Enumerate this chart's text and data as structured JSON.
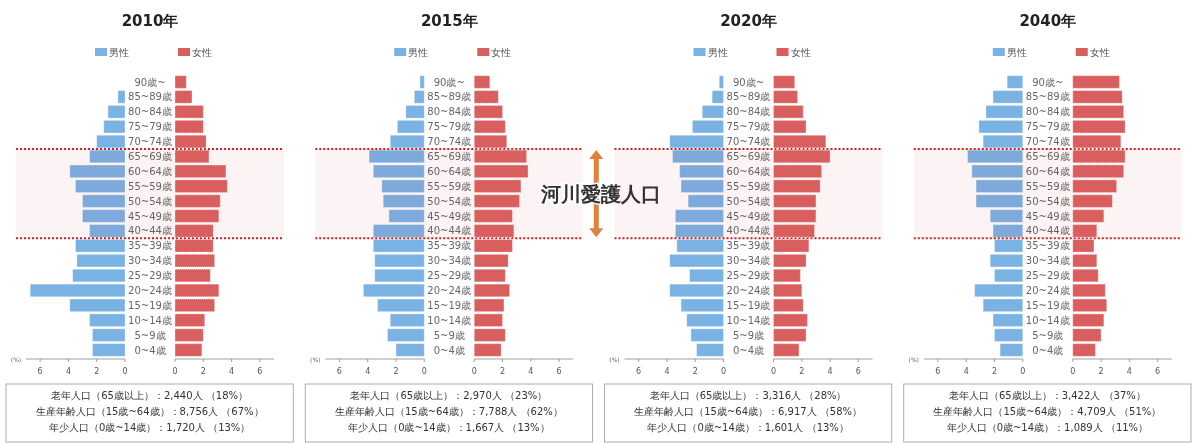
{
  "chart_data": [
    {
      "type": "bar",
      "orientation": "horizontal",
      "title": "2010年",
      "xlabel": "(%)",
      "legend": "top",
      "categories": [
        "90歳~",
        "85~89歳",
        "80~84歳",
        "75~79歳",
        "70~74歳",
        "65~69歳",
        "60~64歳",
        "55~59歳",
        "50~54歳",
        "45~49歳",
        "40~44歳",
        "35~39歳",
        "30~34歳",
        "25~29歳",
        "20~24歳",
        "15~19歳",
        "10~14歳",
        "5~9歳",
        "0~4歳"
      ],
      "series": [
        {
          "name": "男性",
          "color": "#7ab2e4",
          "values": [
            0,
            0.5,
            1.2,
            1.5,
            2.0,
            2.5,
            3.9,
            3.5,
            3.0,
            3.0,
            2.5,
            3.5,
            3.4,
            3.7,
            6.7,
            3.9,
            2.5,
            2.3,
            2.3
          ]
        }
      ],
      "xlim": [
        7,
        0
      ],
      "xticks": [
        6,
        4,
        2,
        0
      ],
      "bands": [
        {
          "axis": "y",
          "from": "65~69歳",
          "to": "40~44歳",
          "color": "#cc2222"
        }
      ],
      "annotations": [
        "老年人口（65歳以上）：2,440人 （18%）",
        "生産年齢人口（15歳~64歳）：8,756人 （67%）",
        "年少人口（0歳~14歳）：1,720人 （13%）"
      ]
    },
    {
      "type": "bar",
      "orientation": "horizontal",
      "legend": "top",
      "tick_labels": "x",
      "categories": [
        null,
        null,
        null,
        null,
        null,
        null,
        null,
        null,
        null,
        null,
        null,
        null,
        null,
        null,
        null,
        null,
        null,
        null,
        null
      ],
      "series": [
        {
          "name": "女性",
          "color": "#d95f5f",
          "values": [
            0.8,
            1.2,
            2.0,
            2.0,
            2.2,
            2.4,
            3.6,
            3.7,
            3.2,
            3.1,
            2.7,
            2.7,
            2.8,
            2.5,
            3.1,
            2.8,
            2.1,
            2.0,
            1.9
          ]
        }
      ],
      "xlim": [
        0,
        7
      ],
      "xticks": [
        0,
        2,
        4,
        6
      ]
    },
    {
      "type": "bar",
      "orientation": "horizontal",
      "title": "2015年",
      "xlabel": "(%)",
      "legend": "top",
      "categories": [
        "90歳~",
        "85~89歳",
        "80~84歳",
        "75~79歳",
        "70~74歳",
        "65~69歳",
        "60~64歳",
        "55~59歳",
        "50~54歳",
        "45~49歳",
        "40~44歳",
        "35~39歳",
        "30~34歳",
        "25~29歳",
        "20~24歳",
        "15~19歳",
        "10~14歳",
        "5~9歳",
        "0~4歳"
      ],
      "series": [
        {
          "name": "男性",
          "color": "#7ab2e4",
          "values": [
            0.3,
            0.7,
            1.3,
            1.9,
            2.4,
            3.9,
            3.6,
            3.0,
            2.9,
            2.5,
            3.6,
            3.6,
            3.5,
            3.5,
            4.3,
            3.3,
            2.4,
            2.6,
            2.0
          ]
        }
      ],
      "xlim": [
        7,
        0
      ],
      "xticks": [
        6,
        4,
        2,
        0
      ],
      "bands": [
        {
          "axis": "y",
          "from": "65~69歳",
          "to": "40~44歳",
          "color": "#cc2222",
          "label": "河川愛護人口"
        }
      ],
      "annotations": [
        "老年人口（65歳以上）：2,970人 （23%）",
        "生産年齢人口（15歳~64歳）：7,788人 （62%）",
        "年少人口（0歳~14歳）：1,667人 （13%）"
      ]
    },
    {
      "type": "bar",
      "orientation": "horizontal",
      "legend": "top",
      "tick_labels": "x",
      "categories": [
        null,
        null,
        null,
        null,
        null,
        null,
        null,
        null,
        null,
        null,
        null,
        null,
        null,
        null,
        null,
        null,
        null,
        null,
        null
      ],
      "series": [
        {
          "name": "女性",
          "color": "#d95f5f",
          "values": [
            1.1,
            1.7,
            2.0,
            2.2,
            2.3,
            3.7,
            3.8,
            3.3,
            3.2,
            2.7,
            2.8,
            2.7,
            2.4,
            2.2,
            2.5,
            2.1,
            2.0,
            2.2,
            1.9
          ]
        }
      ],
      "xlim": [
        0,
        7
      ],
      "xticks": [
        0,
        2,
        4,
        6
      ]
    },
    {
      "type": "bar",
      "orientation": "horizontal",
      "title": "2020年",
      "xlabel": "(%)",
      "legend": "top",
      "categories": [
        "90歳~",
        "85~89歳",
        "80~84歳",
        "75~79歳",
        "70~74歳",
        "65~69歳",
        "60~64歳",
        "55~59歳",
        "50~54歳",
        "45~49歳",
        "40~44歳",
        "35~39歳",
        "30~34歳",
        "25~29歳",
        "20~24歳",
        "15~19歳",
        "10~14歳",
        "5~9歳",
        "0~4歳"
      ],
      "series": [
        {
          "name": "男性",
          "color": "#7ab2e4",
          "values": [
            0.3,
            0.8,
            1.5,
            2.2,
            3.8,
            3.6,
            3.1,
            3.0,
            2.5,
            3.4,
            3.4,
            3.3,
            3.8,
            2.4,
            3.8,
            3.0,
            2.6,
            2.3,
            1.9
          ]
        }
      ],
      "xlim": [
        7,
        0
      ],
      "xticks": [
        6,
        4,
        2,
        0
      ],
      "bands": [
        {
          "axis": "y",
          "from": "65~69歳",
          "to": "40~44歳",
          "color": "#cc2222"
        }
      ],
      "annotations": [
        "老年人口（65歳以上）：3,316人 （28%）",
        "生産年齢人口（15歳~64歳）：6,917人 （58%）",
        "年少人口（0歳~14歳）：1,601人 （13%）"
      ]
    },
    {
      "type": "bar",
      "orientation": "horizontal",
      "legend": "top",
      "tick_labels": "x",
      "categories": [
        null,
        null,
        null,
        null,
        null,
        null,
        null,
        null,
        null,
        null,
        null,
        null,
        null,
        null,
        null,
        null,
        null,
        null,
        null
      ],
      "series": [
        {
          "name": "女性",
          "color": "#d95f5f",
          "values": [
            1.5,
            1.7,
            2.1,
            2.3,
            3.7,
            4.0,
            3.4,
            3.3,
            3.0,
            3.0,
            2.9,
            2.5,
            2.3,
            1.9,
            2.0,
            2.1,
            2.4,
            2.3,
            1.8
          ]
        }
      ],
      "xlim": [
        0,
        7
      ],
      "xticks": [
        0,
        2,
        4,
        6
      ]
    },
    {
      "type": "bar",
      "orientation": "horizontal",
      "title": "2040年",
      "xlabel": "(%)",
      "legend": "top",
      "categories": [
        "90歳~",
        "85~89歳",
        "80~84歳",
        "75~79歳",
        "70~74歳",
        "65~69歳",
        "60~64歳",
        "55~59歳",
        "50~54歳",
        "45~49歳",
        "40~44歳",
        "35~39歳",
        "30~34歳",
        "25~29歳",
        "20~24歳",
        "15~19歳",
        "10~14歳",
        "5~9歳",
        "0~4歳"
      ],
      "series": [
        {
          "name": "男性",
          "color": "#7ab2e4",
          "values": [
            1.1,
            2.1,
            2.6,
            3.1,
            2.8,
            3.9,
            3.6,
            3.3,
            3.3,
            2.3,
            2.1,
            2.0,
            2.3,
            2.0,
            3.4,
            2.8,
            2.1,
            2.0,
            1.6
          ]
        }
      ],
      "xlim": [
        7,
        0
      ],
      "xticks": [
        6,
        4,
        2,
        0
      ],
      "bands": [
        {
          "axis": "y",
          "from": "65~69歳",
          "to": "40~44歳",
          "color": "#cc2222"
        }
      ],
      "annotations": [
        "老年人口（65歳以上）：3,422人 （37%）",
        "生産年齢人口（15歳~64歳）：4,709人 （51%）",
        "年少人口（0歳~14歳）：1,089人 （11%）"
      ]
    },
    {
      "type": "bar",
      "orientation": "horizontal",
      "legend": "top",
      "tick_labels": "x",
      "categories": [
        null,
        null,
        null,
        null,
        null,
        null,
        null,
        null,
        null,
        null,
        null,
        null,
        null,
        null,
        null,
        null,
        null,
        null,
        null
      ],
      "series": [
        {
          "name": "女性",
          "color": "#d95f5f",
          "values": [
            3.3,
            3.5,
            3.6,
            3.7,
            3.4,
            3.7,
            3.6,
            3.1,
            2.8,
            2.2,
            1.7,
            1.5,
            1.7,
            1.8,
            2.3,
            2.4,
            2.2,
            2.0,
            1.6
          ]
        }
      ],
      "xlim": [
        0,
        7
      ],
      "xticks": [
        0,
        2,
        4,
        6
      ]
    }
  ]
}
